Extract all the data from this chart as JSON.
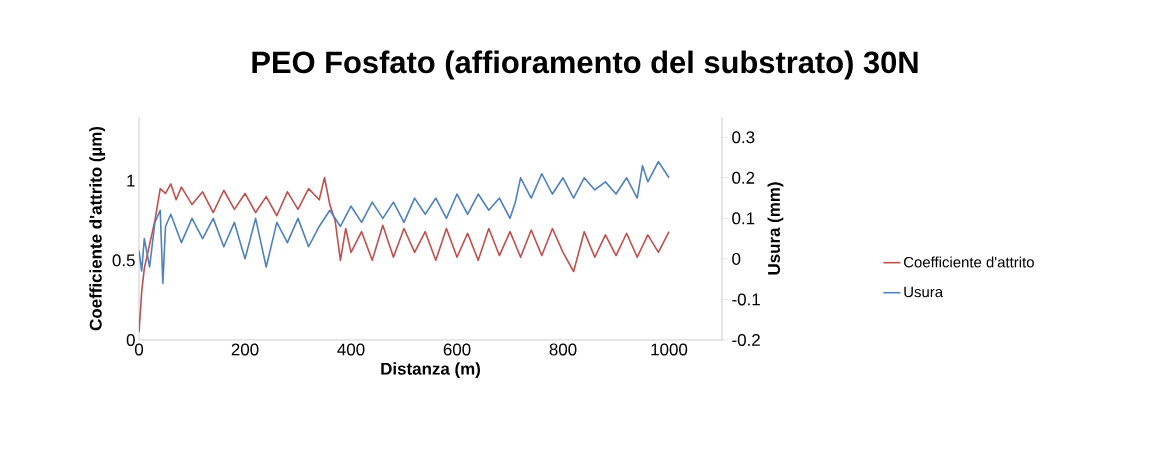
{
  "chart_data": {
    "type": "line",
    "title": "PEO Fosfato (affioramento del substrato) 30N",
    "xlabel": "Distanza (m)",
    "ylabel": "Coefficiente d'attrito (µm)",
    "y2label": "Usura (mm)",
    "xlim": [
      0,
      1100
    ],
    "xticks": [
      0,
      200,
      400,
      600,
      800,
      1000
    ],
    "ylim": [
      0,
      1.4
    ],
    "yticks": [
      0,
      0.5,
      1
    ],
    "y2lim": [
      -0.2,
      0.35
    ],
    "y2ticks": [
      -0.2,
      -0.1,
      0,
      0.1,
      0.2,
      0.3
    ],
    "legend": "right",
    "series": [
      {
        "name": "Coefficiente d'attrito",
        "color": "#c0504d",
        "x": [
          0,
          5,
          10,
          20,
          30,
          40,
          50,
          60,
          70,
          80,
          100,
          120,
          140,
          160,
          180,
          200,
          220,
          240,
          260,
          280,
          300,
          320,
          340,
          350,
          360,
          370,
          380,
          390,
          400,
          420,
          440,
          460,
          480,
          500,
          520,
          540,
          560,
          580,
          600,
          620,
          640,
          660,
          680,
          700,
          720,
          740,
          760,
          780,
          800,
          820,
          840,
          860,
          880,
          900,
          920,
          940,
          960,
          980,
          1000
        ],
        "values": [
          0.05,
          0.3,
          0.45,
          0.6,
          0.75,
          0.95,
          0.92,
          0.98,
          0.88,
          0.96,
          0.85,
          0.93,
          0.8,
          0.94,
          0.82,
          0.92,
          0.8,
          0.9,
          0.78,
          0.93,
          0.82,
          0.95,
          0.88,
          1.02,
          0.85,
          0.75,
          0.5,
          0.7,
          0.55,
          0.68,
          0.5,
          0.72,
          0.52,
          0.7,
          0.55,
          0.68,
          0.5,
          0.7,
          0.52,
          0.67,
          0.5,
          0.7,
          0.53,
          0.68,
          0.52,
          0.69,
          0.53,
          0.7,
          0.55,
          0.43,
          0.68,
          0.52,
          0.66,
          0.53,
          0.67,
          0.52,
          0.66,
          0.55,
          0.68
        ]
      },
      {
        "name": "Usura",
        "color": "#4f81bd",
        "axis": "y2",
        "x": [
          0,
          5,
          10,
          20,
          30,
          40,
          45,
          50,
          60,
          80,
          100,
          120,
          140,
          160,
          180,
          200,
          220,
          240,
          260,
          280,
          300,
          320,
          340,
          360,
          380,
          400,
          420,
          440,
          460,
          480,
          500,
          520,
          540,
          560,
          580,
          600,
          620,
          640,
          660,
          680,
          700,
          710,
          720,
          740,
          760,
          780,
          800,
          820,
          840,
          860,
          880,
          900,
          920,
          940,
          950,
          960,
          980,
          1000
        ],
        "values": [
          0.02,
          -0.03,
          0.05,
          -0.02,
          0.09,
          0.12,
          -0.06,
          0.08,
          0.11,
          0.04,
          0.1,
          0.05,
          0.1,
          0.03,
          0.09,
          0.0,
          0.1,
          -0.02,
          0.09,
          0.04,
          0.1,
          0.03,
          0.08,
          0.12,
          0.08,
          0.13,
          0.09,
          0.14,
          0.1,
          0.14,
          0.09,
          0.15,
          0.11,
          0.15,
          0.1,
          0.16,
          0.11,
          0.16,
          0.12,
          0.15,
          0.1,
          0.14,
          0.2,
          0.15,
          0.21,
          0.16,
          0.2,
          0.15,
          0.2,
          0.17,
          0.19,
          0.16,
          0.2,
          0.15,
          0.23,
          0.19,
          0.24,
          0.2
        ]
      }
    ]
  }
}
